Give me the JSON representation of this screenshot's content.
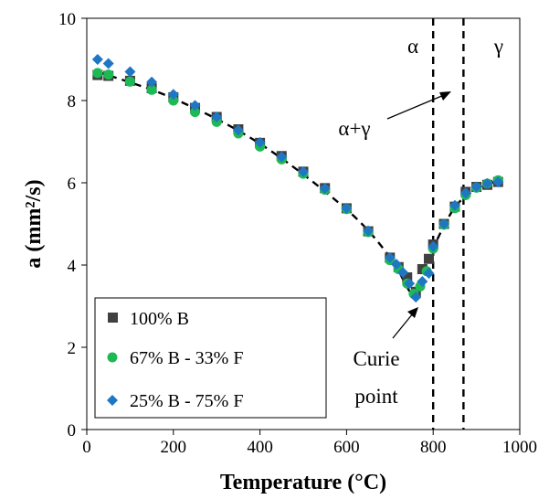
{
  "chart_data": {
    "type": "scatter",
    "xlabel": "Temperature (°C)",
    "ylabel": "a (mm²/s)",
    "xlim": [
      0,
      1000
    ],
    "ylim": [
      0,
      10
    ],
    "x_ticks": [
      "0",
      "200",
      "400",
      "600",
      "800",
      "1000"
    ],
    "y_ticks": [
      "0",
      "2",
      "4",
      "6",
      "8",
      "10"
    ],
    "grid": false,
    "legend_placement": "bottom-left",
    "series": [
      {
        "name": "100% B",
        "marker": "square",
        "color": "#404040",
        "points": [
          [
            25,
            8.62
          ],
          [
            50,
            8.6
          ],
          [
            100,
            8.48
          ],
          [
            150,
            8.3
          ],
          [
            200,
            8.08
          ],
          [
            250,
            7.82
          ],
          [
            300,
            7.6
          ],
          [
            350,
            7.3
          ],
          [
            400,
            6.97
          ],
          [
            450,
            6.65
          ],
          [
            500,
            6.27
          ],
          [
            550,
            5.87
          ],
          [
            600,
            5.38
          ],
          [
            650,
            4.82
          ],
          [
            700,
            4.18
          ],
          [
            720,
            3.95
          ],
          [
            740,
            3.7
          ],
          [
            760,
            3.35
          ],
          [
            775,
            3.9
          ],
          [
            790,
            4.15
          ],
          [
            800,
            4.5
          ],
          [
            825,
            5.0
          ],
          [
            850,
            5.42
          ],
          [
            875,
            5.78
          ],
          [
            900,
            5.9
          ],
          [
            925,
            5.95
          ],
          [
            950,
            6.02
          ]
        ]
      },
      {
        "name": "67% B - 33% F",
        "marker": "circle",
        "color": "#1db954",
        "points": [
          [
            25,
            8.67
          ],
          [
            50,
            8.63
          ],
          [
            100,
            8.46
          ],
          [
            150,
            8.26
          ],
          [
            200,
            8.0
          ],
          [
            250,
            7.72
          ],
          [
            300,
            7.48
          ],
          [
            350,
            7.2
          ],
          [
            400,
            6.88
          ],
          [
            450,
            6.57
          ],
          [
            500,
            6.22
          ],
          [
            550,
            5.83
          ],
          [
            600,
            5.36
          ],
          [
            650,
            4.8
          ],
          [
            700,
            4.12
          ],
          [
            720,
            3.9
          ],
          [
            740,
            3.55
          ],
          [
            755,
            3.3
          ],
          [
            770,
            3.48
          ],
          [
            785,
            3.85
          ],
          [
            800,
            4.4
          ],
          [
            825,
            4.98
          ],
          [
            850,
            5.38
          ],
          [
            875,
            5.7
          ],
          [
            900,
            5.88
          ],
          [
            925,
            5.98
          ],
          [
            950,
            6.06
          ]
        ]
      },
      {
        "name": "25% B - 75% F",
        "marker": "diamond",
        "color": "#1f77c4",
        "points": [
          [
            25,
            9.0
          ],
          [
            50,
            8.9
          ],
          [
            100,
            8.7
          ],
          [
            150,
            8.45
          ],
          [
            200,
            8.15
          ],
          [
            250,
            7.88
          ],
          [
            300,
            7.6
          ],
          [
            350,
            7.28
          ],
          [
            400,
            6.98
          ],
          [
            450,
            6.63
          ],
          [
            500,
            6.27
          ],
          [
            550,
            5.86
          ],
          [
            600,
            5.38
          ],
          [
            650,
            4.83
          ],
          [
            700,
            4.18
          ],
          [
            715,
            4.02
          ],
          [
            730,
            3.82
          ],
          [
            745,
            3.55
          ],
          [
            760,
            3.22
          ],
          [
            775,
            3.6
          ],
          [
            790,
            3.8
          ],
          [
            800,
            4.45
          ],
          [
            825,
            5.0
          ],
          [
            850,
            5.45
          ],
          [
            875,
            5.75
          ],
          [
            900,
            5.9
          ],
          [
            925,
            5.98
          ],
          [
            950,
            6.02
          ]
        ]
      }
    ],
    "trend_line": [
      [
        25,
        8.7
      ],
      [
        200,
        8.05
      ],
      [
        400,
        6.95
      ],
      [
        600,
        5.35
      ],
      [
        700,
        4.2
      ],
      [
        760,
        3.25
      ],
      [
        800,
        4.4
      ],
      [
        850,
        5.4
      ],
      [
        900,
        5.85
      ],
      [
        950,
        6.05
      ]
    ],
    "vertical_lines_x": [
      800,
      870
    ],
    "annotations": {
      "alpha": "α",
      "gamma": "γ",
      "alpha_gamma": "α+γ",
      "curie_line1": "Curie",
      "curie_line2": "point"
    }
  }
}
